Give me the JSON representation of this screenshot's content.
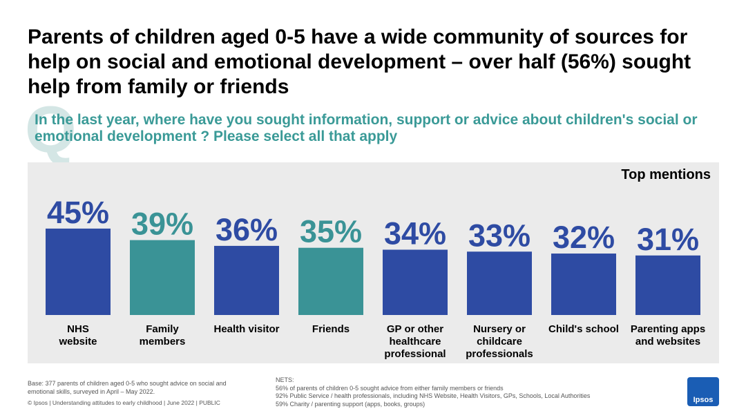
{
  "title": "Parents of children aged 0-5 have a wide community of sources for help on social and emotional development – over half (56%) sought help from family or friends",
  "question_mark": "Q",
  "question": "In the last year, where have you sought information, support or advice about children's social or emotional development ? Please select all that apply",
  "panel_label": "Top mentions",
  "colors": {
    "blue": "#2e4ba3",
    "teal": "#3a9396",
    "panel": "#ebebeb",
    "question": "#3a9a97"
  },
  "chart_data": {
    "type": "bar",
    "categories": [
      [
        "NHS",
        "website"
      ],
      [
        "Family",
        "members"
      ],
      [
        "Health visitor"
      ],
      [
        "Friends"
      ],
      [
        "GP or other",
        "healthcare",
        "professional"
      ],
      [
        "Nursery or",
        "childcare",
        "professionals"
      ],
      [
        "Child's school"
      ],
      [
        "Parenting apps",
        "and websites"
      ]
    ],
    "values": [
      45,
      39,
      36,
      35,
      34,
      33,
      32,
      31
    ],
    "value_labels": [
      "45%",
      "39%",
      "36%",
      "35%",
      "34%",
      "33%",
      "32%",
      "31%"
    ],
    "bar_colors": [
      "blue",
      "teal",
      "blue",
      "teal",
      "blue",
      "blue",
      "blue",
      "blue"
    ],
    "ylim": [
      0,
      100
    ],
    "title": "",
    "xlabel": "",
    "ylabel": ""
  },
  "footer": {
    "base": "Base: 377 parents of children aged 0-5 who sought advice on social and emotional skills, surveyed in April – May 2022.",
    "copyright": "© Ipsos | Understanding attitudes to early childhood | June 2022 | PUBLIC",
    "nets_title": "NETS:",
    "nets": [
      "56% of parents of children 0-5 sought advice from either family members or friends",
      "92% Public Service / health professionals, including NHS Website, Health Visitors, GPs, Schools, Local Authorities",
      "59% Charity / parenting support (apps, books, groups)"
    ]
  },
  "logo_text": "Ipsos"
}
